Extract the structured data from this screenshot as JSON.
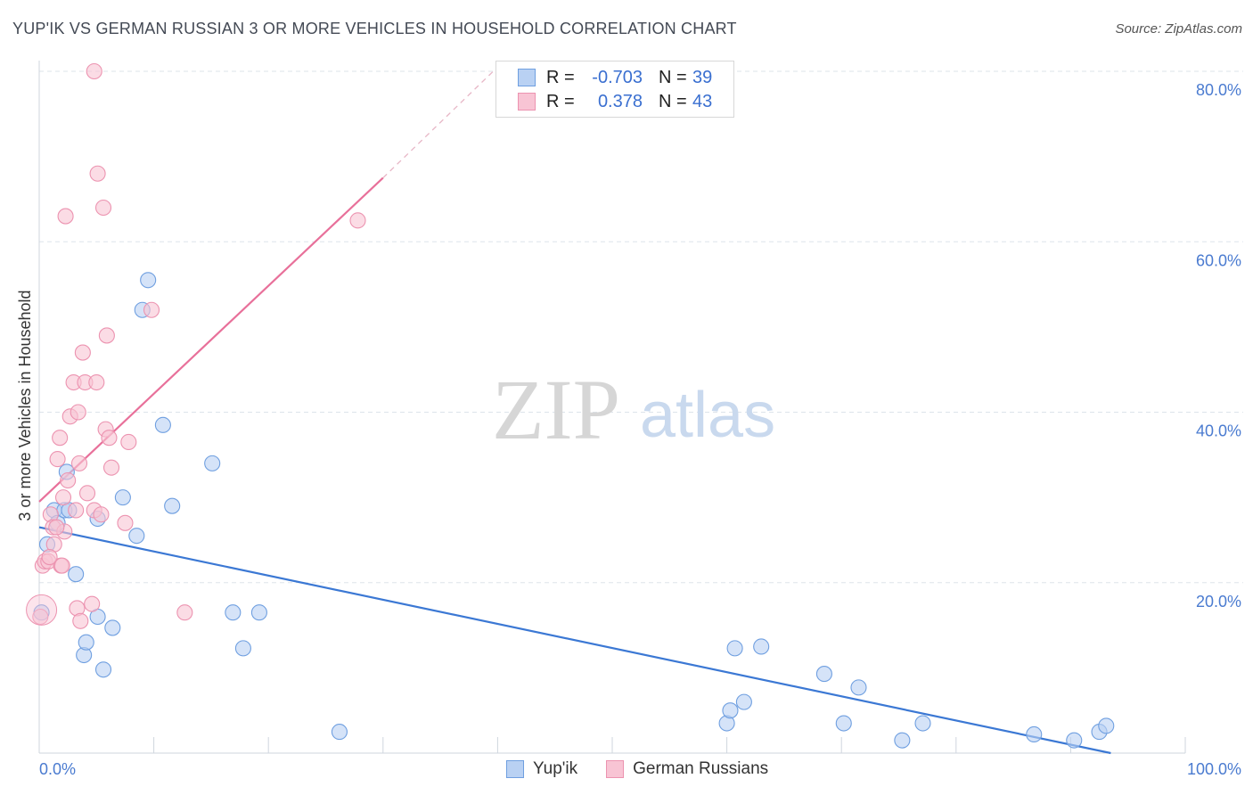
{
  "title": "YUP'IK VS GERMAN RUSSIAN 3 OR MORE VEHICLES IN HOUSEHOLD CORRELATION CHART",
  "source": "Source: ZipAtlas.com",
  "watermark": {
    "zip": "ZIP",
    "atlas": "atlas"
  },
  "legend": {
    "rows": [
      {
        "r_label": "R =",
        "r_value": "-0.703",
        "n_label": "N =",
        "n_value": "39"
      },
      {
        "r_label": "R =",
        "r_value": "0.378",
        "n_label": "N =",
        "n_value": "43"
      }
    ]
  },
  "bottom_legend": {
    "series1": "Yup'ik",
    "series2": "German Russians"
  },
  "colors": {
    "blue_fill": "#b9d1f3",
    "blue_stroke": "#6f9fe0",
    "blue_line": "#3b78d4",
    "pink_fill": "#f8c4d4",
    "pink_stroke": "#ec93b0",
    "pink_line": "#e8709a",
    "grid": "#dde3ea",
    "tick_text": "#4a7bd0"
  },
  "chart_data": {
    "type": "scatter",
    "title": "YUP'IK VS GERMAN RUSSIAN 3 OR MORE VEHICLES IN HOUSEHOLD CORRELATION CHART",
    "xlabel": "",
    "ylabel": "3 or more Vehicles in Household",
    "xlim": [
      0,
      100
    ],
    "ylim": [
      0,
      80
    ],
    "x_ticks": [
      0,
      10,
      20,
      30,
      40,
      50,
      60,
      70,
      80,
      90,
      100
    ],
    "x_tick_labels": {
      "0": "0.0%",
      "100": "100.0%"
    },
    "y_ticks": [
      20,
      40,
      60,
      80
    ],
    "y_tick_labels": [
      "20.0%",
      "40.0%",
      "60.0%",
      "80.0%"
    ],
    "series": [
      {
        "name": "Yup'ik",
        "color": "blue",
        "points": [
          [
            0.2,
            16.5
          ],
          [
            0.7,
            24.5
          ],
          [
            1.3,
            28.5
          ],
          [
            1.6,
            27.0
          ],
          [
            2.4,
            33.0
          ],
          [
            2.2,
            28.5
          ],
          [
            2.6,
            28.5
          ],
          [
            3.2,
            21.0
          ],
          [
            3.9,
            11.5
          ],
          [
            4.1,
            13.0
          ],
          [
            5.1,
            27.5
          ],
          [
            5.1,
            16.0
          ],
          [
            5.6,
            9.8
          ],
          [
            6.4,
            14.7
          ],
          [
            7.3,
            30.0
          ],
          [
            8.5,
            25.5
          ],
          [
            9.0,
            52.0
          ],
          [
            9.5,
            55.5
          ],
          [
            10.8,
            38.5
          ],
          [
            11.6,
            29.0
          ],
          [
            15.1,
            34.0
          ],
          [
            16.9,
            16.5
          ],
          [
            17.8,
            12.3
          ],
          [
            19.2,
            16.5
          ],
          [
            26.2,
            2.5
          ],
          [
            60.0,
            3.5
          ],
          [
            60.3,
            5.0
          ],
          [
            60.7,
            12.3
          ],
          [
            61.5,
            6.0
          ],
          [
            63.0,
            12.5
          ],
          [
            68.5,
            9.3
          ],
          [
            70.2,
            3.5
          ],
          [
            71.5,
            7.7
          ],
          [
            75.3,
            1.5
          ],
          [
            77.1,
            3.5
          ],
          [
            86.8,
            2.2
          ],
          [
            90.3,
            1.5
          ],
          [
            92.5,
            2.5
          ],
          [
            93.1,
            3.2
          ]
        ]
      },
      {
        "name": "German Russians",
        "color": "pink",
        "points": [
          [
            0.1,
            16.0
          ],
          [
            0.3,
            22.0
          ],
          [
            0.5,
            22.5
          ],
          [
            0.8,
            22.5
          ],
          [
            1.0,
            28.0
          ],
          [
            1.2,
            26.5
          ],
          [
            1.3,
            24.5
          ],
          [
            1.6,
            34.5
          ],
          [
            1.9,
            22.0
          ],
          [
            1.8,
            37.0
          ],
          [
            2.1,
            30.0
          ],
          [
            2.2,
            26.0
          ],
          [
            2.3,
            63.0
          ],
          [
            2.5,
            32.0
          ],
          [
            2.7,
            39.5
          ],
          [
            3.0,
            43.5
          ],
          [
            3.2,
            28.5
          ],
          [
            3.3,
            17.0
          ],
          [
            3.4,
            40.0
          ],
          [
            3.5,
            34.0
          ],
          [
            3.6,
            15.5
          ],
          [
            3.8,
            47.0
          ],
          [
            4.0,
            43.5
          ],
          [
            4.2,
            30.5
          ],
          [
            4.6,
            17.5
          ],
          [
            4.8,
            28.5
          ],
          [
            5.0,
            43.5
          ],
          [
            5.1,
            68.0
          ],
          [
            5.4,
            28.0
          ],
          [
            5.6,
            64.0
          ],
          [
            5.8,
            38.0
          ],
          [
            5.9,
            49.0
          ],
          [
            6.1,
            37.0
          ],
          [
            6.3,
            33.5
          ],
          [
            7.5,
            27.0
          ],
          [
            7.8,
            36.5
          ],
          [
            9.8,
            52.0
          ],
          [
            12.7,
            16.5
          ],
          [
            27.8,
            62.5
          ],
          [
            4.8,
            80.0
          ],
          [
            0.9,
            23.0
          ],
          [
            1.5,
            26.5
          ],
          [
            2.0,
            22.0
          ]
        ]
      }
    ],
    "trend_lines": [
      {
        "name": "Yup'ik",
        "x": [
          0,
          93.5
        ],
        "y": [
          26.5,
          0.0
        ]
      },
      {
        "name": "German Russians",
        "x": [
          0,
          30.0
        ],
        "y": [
          29.5,
          67.5
        ],
        "dashed_extension_to": [
          40.0,
          80.5
        ]
      }
    ],
    "grid": true
  }
}
